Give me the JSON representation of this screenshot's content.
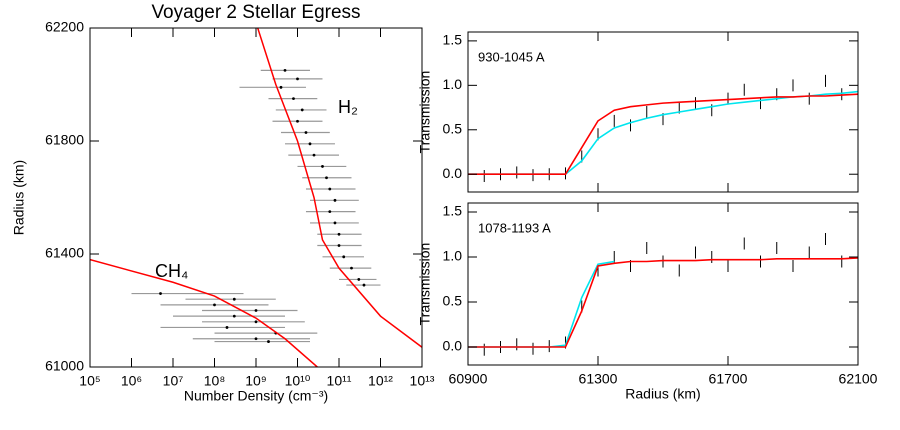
{
  "chart_data": [
    {
      "type": "scatter",
      "title": "Voyager 2 Stellar Egress",
      "x_label": "Number Density (cm⁻³)",
      "y_label": "Radius (km)",
      "log_x": true,
      "xlim": [
        100000.0,
        10000000000000.0
      ],
      "xticks": [
        {
          "value": 100000.0,
          "label": "10⁵"
        },
        {
          "value": 1000000.0,
          "label": "10⁶"
        },
        {
          "value": 10000000.0,
          "label": "10⁷"
        },
        {
          "value": 100000000.0,
          "label": "10⁸"
        },
        {
          "value": 1000000000.0,
          "label": "10⁹"
        },
        {
          "value": 10000000000.0,
          "label": "10¹⁰"
        },
        {
          "value": 100000000000.0,
          "label": "10¹¹"
        },
        {
          "value": 1000000000000.0,
          "label": "10¹²"
        },
        {
          "value": 10000000000000.0,
          "label": "10¹³"
        }
      ],
      "ylim": [
        61000,
        62200
      ],
      "yticks": [
        61000,
        61400,
        61800,
        62200
      ],
      "series": [
        {
          "name": "H₂",
          "color": "#000000",
          "bar_color": "#999999",
          "y": [
            62050,
            62020,
            61990,
            61950,
            61910,
            61870,
            61830,
            61790,
            61750,
            61710,
            61670,
            61630,
            61590,
            61550,
            61510,
            61470,
            61430,
            61390,
            61350,
            61310,
            61290
          ],
          "x": [
            5000000000.0,
            10000000000.0,
            4000000000.0,
            8000000000.0,
            13000000000.0,
            10000000000.0,
            16000000000.0,
            20000000000.0,
            25000000000.0,
            40000000000.0,
            50000000000.0,
            60000000000.0,
            80000000000.0,
            60000000000.0,
            80000000000.0,
            100000000000.0,
            100000000000.0,
            130000000000.0,
            200000000000.0,
            300000000000.0,
            400000000000.0
          ],
          "x_low": [
            1300000000.0,
            2500000000.0,
            400000000.0,
            2000000000.0,
            3000000000.0,
            2500000000.0,
            4000000000.0,
            5000000000.0,
            6000000000.0,
            10000000000.0,
            13000000000.0,
            16000000000.0,
            20000000000.0,
            16000000000.0,
            20000000000.0,
            30000000000.0,
            30000000000.0,
            40000000000.0,
            60000000000.0,
            100000000000.0,
            150000000000.0
          ],
          "x_high": [
            20000000000.0,
            40000000000.0,
            16000000000.0,
            30000000000.0,
            50000000000.0,
            40000000000.0,
            60000000000.0,
            80000000000.0,
            100000000000.0,
            150000000000.0,
            200000000000.0,
            250000000000.0,
            300000000000.0,
            250000000000.0,
            300000000000.0,
            350000000000.0,
            350000000000.0,
            400000000000.0,
            600000000000.0,
            800000000000.0,
            1000000000000.0
          ]
        },
        {
          "name": "CH₄",
          "color": "#000000",
          "bar_color": "#999999",
          "y": [
            61260,
            61240,
            61220,
            61200,
            61180,
            61160,
            61140,
            61120,
            61100,
            61090
          ],
          "x": [
            5000000.0,
            300000000.0,
            100000000.0,
            1000000000.0,
            300000000.0,
            1000000000.0,
            200000000.0,
            3000000000.0,
            1000000000.0,
            2000000000.0
          ],
          "x_low": [
            1000000.0,
            20000000.0,
            5000000.0,
            50000000.0,
            10000000.0,
            50000000.0,
            5000000.0,
            100000000.0,
            30000000.0,
            100000000.0
          ],
          "x_high": [
            500000000.0,
            3000000000.0,
            2000000000.0,
            10000000000.0,
            5000000000.0,
            15000000000.0,
            5000000000.0,
            30000000000.0,
            20000000000.0,
            20000000000.0
          ]
        }
      ],
      "models": [
        {
          "color": "#ff0000",
          "x": [
            1100000000.0,
            3000000000.0,
            10000000000.0,
            25000000000.0,
            40000000000.0,
            100000000000.0,
            1000000000000.0,
            10000000000000.0
          ],
          "y": [
            62200,
            62000,
            61800,
            61600,
            61450,
            61350,
            61180,
            61070
          ]
        },
        {
          "color": "#ff0000",
          "x": [
            100000.0,
            10000000.0,
            100000000.0,
            1000000000.0,
            5000000000.0,
            30000000000.0
          ],
          "y": [
            61380,
            61300,
            61251,
            61173,
            61100,
            61000
          ]
        }
      ]
    },
    {
      "type": "line",
      "annotation": "930-1045 A",
      "y_label": "Transmission",
      "show_xtick_labels": false,
      "xlim": [
        60900,
        62100
      ],
      "xticks": [
        60900,
        61300,
        61700,
        62100
      ],
      "ylim": [
        -0.2,
        1.6
      ],
      "yticks": [
        {
          "value": 0,
          "label": "0.0"
        },
        0.5,
        {
          "value": 1,
          "label": "1.0"
        },
        1.5
      ],
      "x": [
        60900,
        60950,
        61000,
        61050,
        61100,
        61150,
        61200,
        61250,
        61300,
        61350,
        61400,
        61450,
        61500,
        61550,
        61600,
        61650,
        61700,
        61750,
        61800,
        61850,
        61900,
        61950,
        62000,
        62050,
        62100
      ],
      "series": [
        {
          "color": "#000000",
          "style": "ticks",
          "values": [
            0.01,
            -0.02,
            0.0,
            0.02,
            -0.01,
            0.0,
            0.01,
            0.2,
            0.45,
            0.6,
            0.55,
            0.7,
            0.62,
            0.75,
            0.8,
            0.72,
            0.85,
            0.95,
            0.8,
            0.9,
            1.0,
            0.85,
            1.05,
            0.9,
            0.95
          ]
        },
        {
          "color": "#00e5ee",
          "values": [
            0,
            0,
            0,
            0,
            0,
            0,
            0,
            0.15,
            0.4,
            0.52,
            0.58,
            0.63,
            0.67,
            0.7,
            0.73,
            0.76,
            0.79,
            0.81,
            0.83,
            0.85,
            0.87,
            0.88,
            0.9,
            0.91,
            0.93
          ]
        },
        {
          "color": "#ff0000",
          "values": [
            0,
            0,
            0,
            0,
            0,
            0,
            0,
            0.3,
            0.6,
            0.72,
            0.76,
            0.78,
            0.8,
            0.81,
            0.82,
            0.83,
            0.84,
            0.85,
            0.86,
            0.87,
            0.87,
            0.88,
            0.88,
            0.89,
            0.9
          ]
        }
      ]
    },
    {
      "type": "line",
      "annotation": "1078-1193 A",
      "y_label": "Transmission",
      "x_label": "Radius (km)",
      "xlim": [
        60900,
        62100
      ],
      "xticks": [
        60900,
        61300,
        61700,
        62100
      ],
      "ylim": [
        -0.2,
        1.6
      ],
      "yticks": [
        {
          "value": 0,
          "label": "0.0"
        },
        0.5,
        {
          "value": 1,
          "label": "1.0"
        },
        1.5
      ],
      "x": [
        60900,
        60950,
        61000,
        61050,
        61100,
        61150,
        61200,
        61250,
        61300,
        61350,
        61400,
        61450,
        61500,
        61550,
        61600,
        61650,
        61700,
        61750,
        61800,
        61850,
        61900,
        61950,
        62000,
        62050,
        62100
      ],
      "series": [
        {
          "color": "#000000",
          "style": "ticks",
          "values": [
            0.02,
            -0.03,
            0.0,
            0.03,
            -0.02,
            0.01,
            0.05,
            0.45,
            0.85,
            1.0,
            0.9,
            1.1,
            0.95,
            0.85,
            1.05,
            1.0,
            0.9,
            1.15,
            0.95,
            1.1,
            0.9,
            1.05,
            1.2,
            0.95,
            1.0
          ]
        },
        {
          "color": "#00e5ee",
          "values": [
            0,
            0,
            0,
            0,
            0,
            0,
            0.02,
            0.55,
            0.92,
            0.95,
            null,
            null,
            null,
            null,
            null,
            null,
            null,
            null,
            null,
            null,
            null,
            null,
            null,
            null,
            null
          ]
        },
        {
          "color": "#ff0000",
          "values": [
            0,
            0,
            0,
            0,
            0,
            0,
            0,
            0.4,
            0.9,
            0.93,
            0.95,
            0.95,
            0.96,
            0.96,
            0.96,
            0.97,
            0.97,
            0.97,
            0.97,
            0.98,
            0.98,
            0.98,
            0.98,
            0.98,
            0.99
          ]
        }
      ]
    }
  ]
}
